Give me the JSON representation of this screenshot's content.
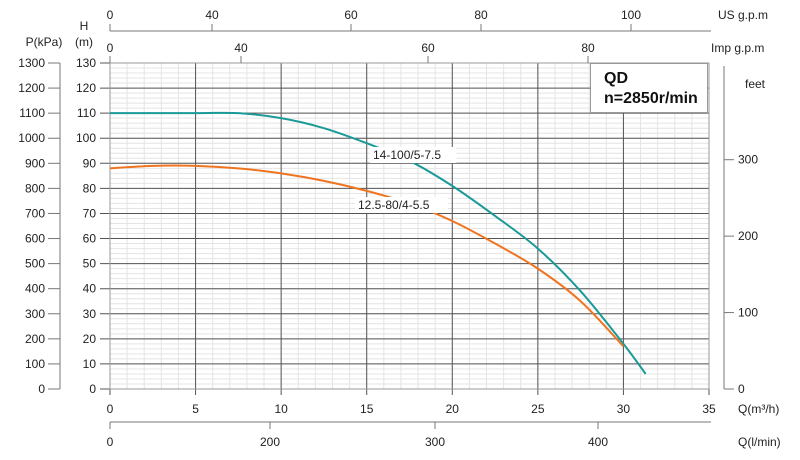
{
  "chart_data": {
    "type": "line",
    "title": "QD",
    "subtitle": "n=2850r/min",
    "xlabel": "Q(m³/h)",
    "ylabel": "H (m)",
    "xlim": [
      0,
      35
    ],
    "ylim": [
      0,
      130
    ],
    "grid": true,
    "x_ticks": [
      0,
      5,
      10,
      15,
      20,
      25,
      30,
      35
    ],
    "y_ticks": [
      0,
      10,
      20,
      30,
      40,
      50,
      60,
      70,
      80,
      90,
      100,
      110,
      120,
      130
    ],
    "y_label_top": "H",
    "y_label_unit": "(m)",
    "pressure_axis": {
      "label": "P(kPa)",
      "ticks": [
        0,
        100,
        200,
        300,
        400,
        500,
        600,
        700,
        800,
        900,
        1000,
        1100,
        1200,
        1300
      ]
    },
    "feet_axis": {
      "label": "feet",
      "ticks": [
        0,
        100,
        200,
        300
      ]
    },
    "us_gpm_axis": {
      "label": "US g.p.m",
      "ticks": [
        0,
        40,
        60,
        80,
        100
      ]
    },
    "imp_gpm_axis": {
      "label": "Imp g.p.m",
      "ticks": [
        0,
        40,
        60,
        80
      ]
    },
    "lmin_axis": {
      "label": "Q(l/min)",
      "ticks": [
        0,
        200,
        300,
        400
      ]
    },
    "series": [
      {
        "name": "14-100/5-7.5",
        "color": "#1a9a98",
        "x": [
          0,
          5,
          7.5,
          10,
          12.5,
          15,
          17.5,
          20,
          22.5,
          25,
          27.5,
          30,
          31.3
        ],
        "y": [
          110,
          110,
          110,
          108,
          104,
          98,
          91,
          81,
          69,
          56,
          39,
          18,
          6
        ]
      },
      {
        "name": "12.5-80/4-5.5",
        "color": "#ef7420",
        "x": [
          0,
          2.5,
          5,
          7.5,
          10,
          12.5,
          15,
          17.5,
          20,
          22.5,
          25,
          27.5,
          30
        ],
        "y": [
          88,
          89,
          89,
          88,
          86,
          83,
          79,
          74,
          67,
          58,
          48,
          35,
          17
        ]
      }
    ]
  }
}
